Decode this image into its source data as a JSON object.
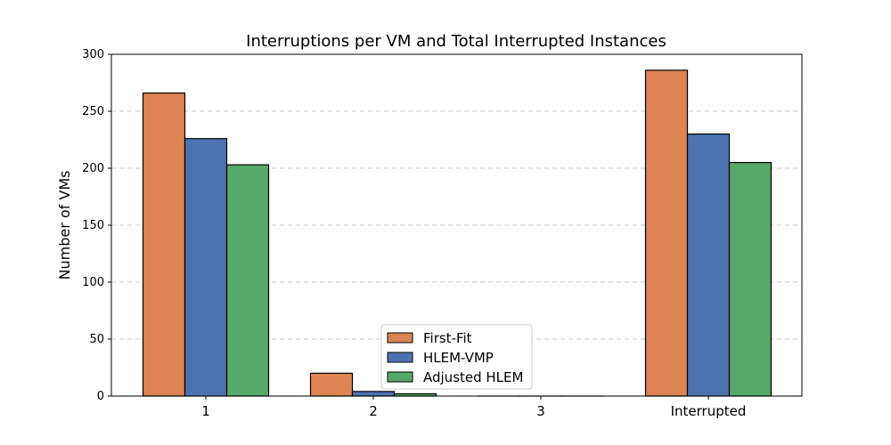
{
  "chart_data": {
    "type": "bar",
    "title": "Interruptions per VM and Total Interrupted Instances",
    "xlabel": "",
    "ylabel": "Number of VMs",
    "ylim": [
      0,
      300
    ],
    "yticks": [
      0,
      50,
      100,
      150,
      200,
      250,
      300
    ],
    "grid": "y-dashed",
    "legend_position": "lower-center",
    "categories": [
      "1",
      "2",
      "3",
      "Interrupted"
    ],
    "series": [
      {
        "name": "First-Fit",
        "color": "#dd8452",
        "values": [
          266,
          20,
          0,
          286
        ]
      },
      {
        "name": "HLEM-VMP",
        "color": "#4c72b0",
        "values": [
          226,
          4,
          0,
          230
        ]
      },
      {
        "name": "Adjusted HLEM",
        "color": "#55a868",
        "values": [
          203,
          2,
          0,
          205
        ]
      }
    ]
  }
}
